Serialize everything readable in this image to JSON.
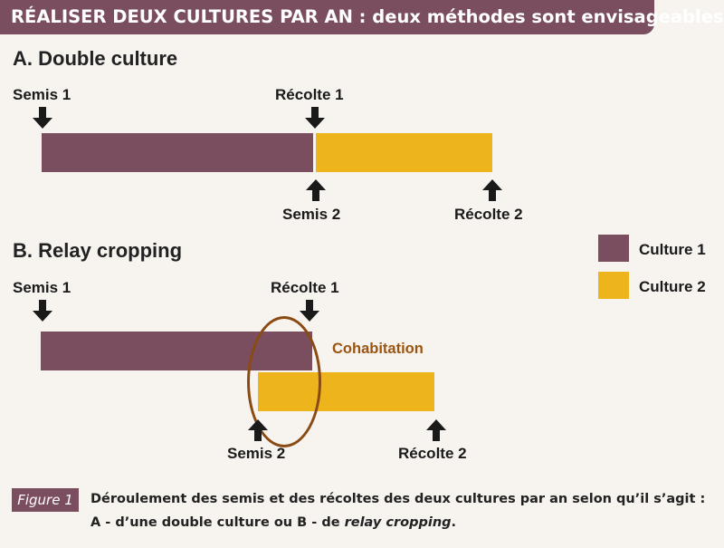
{
  "header": {
    "title": "RÉALISER DEUX CULTURES PAR AN : deux méthodes sont envisageables"
  },
  "section_a": {
    "title": "A. Double culture",
    "semis1": "Semis 1",
    "recolte1": "Récolte 1",
    "semis2": "Semis 2",
    "recolte2": "Récolte 2"
  },
  "section_b": {
    "title": "B. Relay cropping",
    "semis1": "Semis 1",
    "recolte1": "Récolte 1",
    "semis2": "Semis 2",
    "recolte2": "Récolte 2",
    "cohabitation": "Cohabitation"
  },
  "legend": {
    "items": [
      {
        "label": "Culture 1",
        "color": "#7a4d5f"
      },
      {
        "label": "Culture 2",
        "color": "#edb51b"
      }
    ]
  },
  "caption": {
    "badge": "Figure 1",
    "text_main": "Déroulement des semis et des récoltes des deux cultures par an selon qu’il s’agit : A - d’une double culture ou B - de ",
    "text_italic": "relay cropping",
    "text_end": "."
  },
  "colors": {
    "culture1": "#7a4d5f",
    "culture2": "#edb51b",
    "accent": "#8a4a14"
  }
}
